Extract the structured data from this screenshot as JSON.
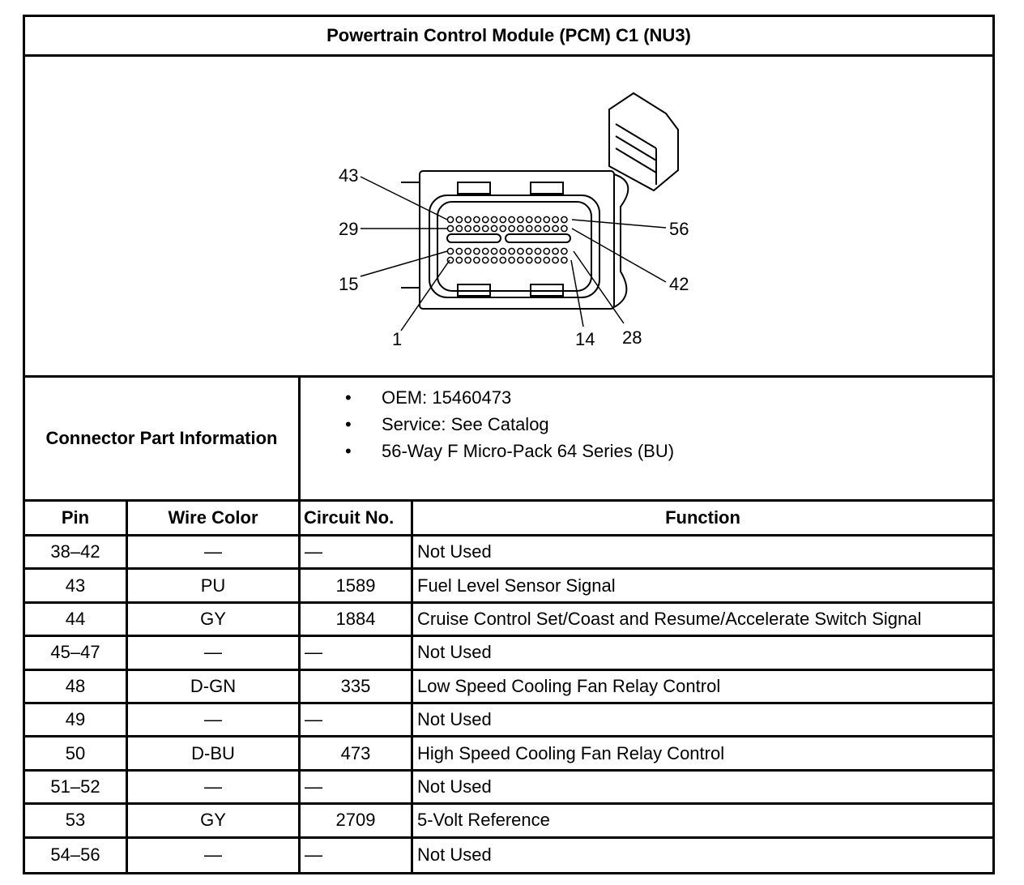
{
  "title": "Powertrain Control Module (PCM) C1 (NU3)",
  "diagram": {
    "pin_labels": [
      "43",
      "29",
      "15",
      "1",
      "14",
      "28",
      "42",
      "56"
    ]
  },
  "connector_info": {
    "label": "Connector Part Information",
    "items": [
      "OEM: 15460473",
      "Service: See Catalog",
      "56-Way F Micro-Pack 64 Series (BU)"
    ]
  },
  "table": {
    "headers": [
      "Pin",
      "Wire Color",
      "Circuit No.",
      "Function"
    ],
    "rows": [
      {
        "pin": "38–42",
        "color": "—",
        "circuit": "—",
        "function": "Not Used"
      },
      {
        "pin": "43",
        "color": "PU",
        "circuit": "1589",
        "function": "Fuel Level Sensor Signal"
      },
      {
        "pin": "44",
        "color": "GY",
        "circuit": "1884",
        "function": "Cruise Control Set/Coast and Resume/Accelerate Switch Signal"
      },
      {
        "pin": "45–47",
        "color": "—",
        "circuit": "—",
        "function": "Not Used"
      },
      {
        "pin": "48",
        "color": "D-GN",
        "circuit": "335",
        "function": "Low Speed Cooling Fan Relay Control"
      },
      {
        "pin": "49",
        "color": "—",
        "circuit": "—",
        "function": "Not Used"
      },
      {
        "pin": "50",
        "color": "D-BU",
        "circuit": "473",
        "function": "High Speed Cooling Fan Relay Control"
      },
      {
        "pin": "51–52",
        "color": "—",
        "circuit": "—",
        "function": "Not Used"
      },
      {
        "pin": "53",
        "color": "GY",
        "circuit": "2709",
        "function": "5-Volt Reference"
      },
      {
        "pin": "54–56",
        "color": "—",
        "circuit": "—",
        "function": "Not Used"
      }
    ]
  }
}
